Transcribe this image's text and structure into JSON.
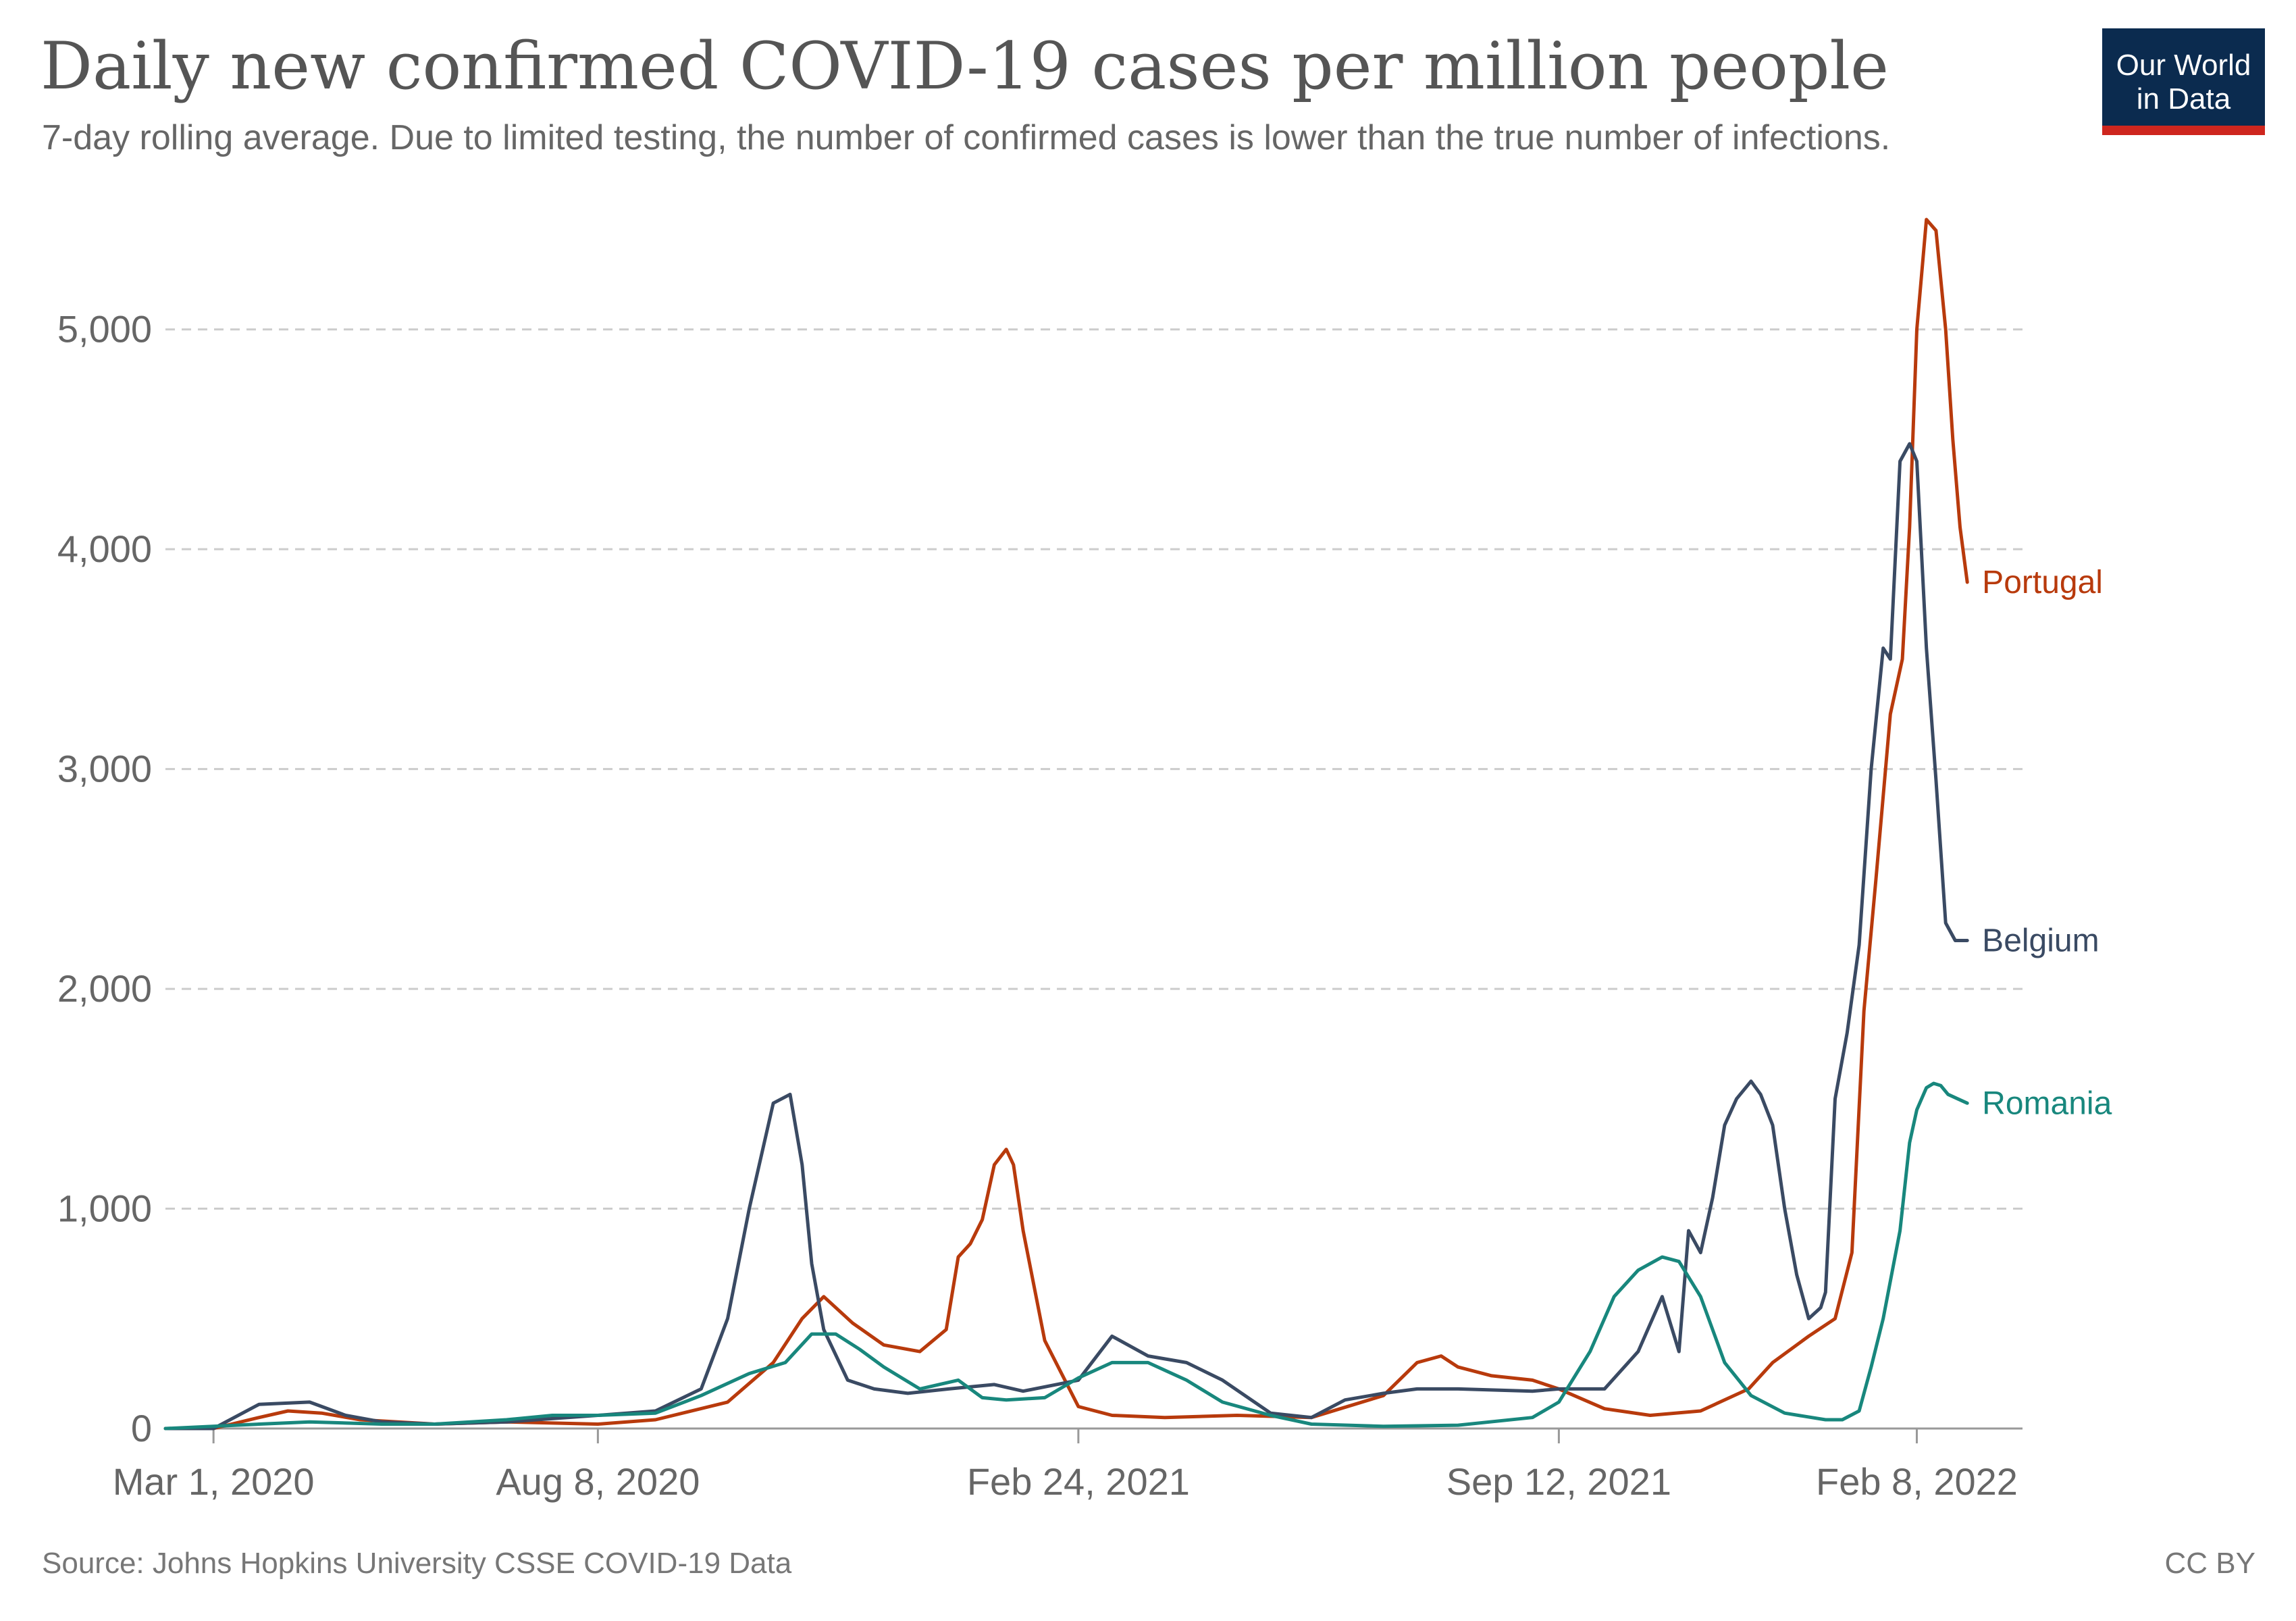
{
  "title": "Daily new confirmed COVID-19 cases per million people",
  "subtitle": "7-day rolling average. Due to limited testing, the number of confirmed cases is lower than the true number of infections.",
  "logo": {
    "line1": "Our World",
    "line2": "in Data"
  },
  "footer": {
    "source": "Source: Johns Hopkins University CSSE COVID-19 Data",
    "license": "CC BY"
  },
  "colors": {
    "Portugal": "#b83a0c",
    "Belgium": "#3a4a63",
    "Romania": "#18877d",
    "grid": "#cccccc",
    "axis": "#666666"
  },
  "chart_data": {
    "type": "line",
    "title": "Daily new confirmed COVID-19 cases per million people",
    "subtitle": "7-day rolling average. Due to limited testing, the number of confirmed cases is lower than the true number of infections.",
    "xlim": [
      "2020-02-10",
      "2022-03-24"
    ],
    "ylim": [
      0,
      5500
    ],
    "y_ticks": [
      0,
      1000,
      2000,
      3000,
      4000,
      5000
    ],
    "y_tick_labels": [
      "0",
      "1,000",
      "2,000",
      "3,000",
      "4,000",
      "5,000"
    ],
    "x_ticks": [
      "2020-03-01",
      "2020-08-08",
      "2021-02-24",
      "2021-09-12",
      "2022-02-08"
    ],
    "x_tick_labels": [
      "Mar 1, 2020",
      "Aug 8, 2020",
      "Feb 24, 2021",
      "Sep 12, 2021",
      "Feb 8, 2022"
    ],
    "grid": "horizontal dashed",
    "legend": "labels at line ends",
    "series": [
      {
        "name": "Portugal",
        "x": [
          "2020-02-10",
          "2020-03-01",
          "2020-03-20",
          "2020-04-01",
          "2020-04-15",
          "2020-05-01",
          "2020-06-01",
          "2020-07-01",
          "2020-08-08",
          "2020-09-01",
          "2020-10-01",
          "2020-10-20",
          "2020-11-01",
          "2020-11-10",
          "2020-11-22",
          "2020-12-05",
          "2020-12-20",
          "2020-12-31",
          "2021-01-05",
          "2021-01-10",
          "2021-01-15",
          "2021-01-20",
          "2021-01-25",
          "2021-01-28",
          "2021-02-01",
          "2021-02-10",
          "2021-02-24",
          "2021-03-10",
          "2021-04-01",
          "2021-05-01",
          "2021-06-01",
          "2021-07-01",
          "2021-07-15",
          "2021-07-25",
          "2021-08-01",
          "2021-08-15",
          "2021-09-01",
          "2021-09-12",
          "2021-10-01",
          "2021-10-20",
          "2021-11-10",
          "2021-11-30",
          "2021-12-10",
          "2021-12-25",
          "2022-01-05",
          "2022-01-12",
          "2022-01-17",
          "2022-01-22",
          "2022-01-28",
          "2022-02-02",
          "2022-02-05",
          "2022-02-08",
          "2022-02-12",
          "2022-02-16",
          "2022-02-20",
          "2022-02-23",
          "2022-02-26",
          "2022-03-01"
        ],
        "values": [
          0,
          0,
          50,
          80,
          70,
          40,
          20,
          30,
          20,
          40,
          120,
          300,
          500,
          600,
          480,
          380,
          350,
          450,
          780,
          840,
          950,
          1200,
          1270,
          1200,
          900,
          400,
          100,
          60,
          50,
          60,
          50,
          150,
          300,
          330,
          280,
          240,
          220,
          180,
          90,
          60,
          80,
          180,
          300,
          420,
          500,
          800,
          1900,
          2500,
          3250,
          3500,
          4100,
          5000,
          5500,
          5450,
          5000,
          4500,
          4100,
          3850
        ]
      },
      {
        "name": "Belgium",
        "x": [
          "2020-02-10",
          "2020-03-01",
          "2020-03-20",
          "2020-04-10",
          "2020-04-25",
          "2020-05-10",
          "2020-06-01",
          "2020-07-01",
          "2020-08-08",
          "2020-09-01",
          "2020-09-20",
          "2020-10-01",
          "2020-10-10",
          "2020-10-20",
          "2020-10-27",
          "2020-11-01",
          "2020-11-05",
          "2020-11-10",
          "2020-11-20",
          "2020-12-01",
          "2020-12-15",
          "2021-01-01",
          "2021-01-20",
          "2021-02-01",
          "2021-02-24",
          "2021-03-10",
          "2021-03-25",
          "2021-04-10",
          "2021-04-25",
          "2021-05-15",
          "2021-06-01",
          "2021-06-15",
          "2021-07-01",
          "2021-07-15",
          "2021-08-01",
          "2021-09-01",
          "2021-09-12",
          "2021-10-01",
          "2021-10-15",
          "2021-10-25",
          "2021-11-01",
          "2021-11-05",
          "2021-11-10",
          "2021-11-15",
          "2021-11-20",
          "2021-11-25",
          "2021-12-01",
          "2021-12-05",
          "2021-12-10",
          "2021-12-15",
          "2021-12-20",
          "2021-12-25",
          "2021-12-30",
          "2022-01-01",
          "2022-01-05",
          "2022-01-10",
          "2022-01-15",
          "2022-01-20",
          "2022-01-25",
          "2022-01-28",
          "2022-02-01",
          "2022-02-05",
          "2022-02-08",
          "2022-02-12",
          "2022-02-16",
          "2022-02-20",
          "2022-02-24",
          "2022-02-28",
          "2022-03-01"
        ],
        "values": [
          0,
          0,
          110,
          120,
          60,
          30,
          20,
          30,
          60,
          80,
          180,
          500,
          1000,
          1480,
          1520,
          1200,
          750,
          450,
          220,
          180,
          160,
          180,
          200,
          170,
          220,
          420,
          330,
          300,
          220,
          70,
          50,
          130,
          160,
          180,
          180,
          170,
          180,
          180,
          350,
          600,
          350,
          900,
          800,
          1050,
          1380,
          1500,
          1580,
          1520,
          1380,
          1000,
          700,
          500,
          550,
          620,
          1500,
          1800,
          2200,
          3000,
          3550,
          3500,
          4400,
          4480,
          4400,
          3550,
          2950,
          2300,
          2220,
          2220,
          2220
        ]
      },
      {
        "name": "Romania",
        "x": [
          "2020-02-10",
          "2020-03-20",
          "2020-04-10",
          "2020-05-10",
          "2020-06-01",
          "2020-07-01",
          "2020-07-20",
          "2020-08-08",
          "2020-09-01",
          "2020-09-20",
          "2020-10-10",
          "2020-10-25",
          "2020-11-05",
          "2020-11-15",
          "2020-11-25",
          "2020-12-05",
          "2020-12-20",
          "2021-01-05",
          "2021-01-15",
          "2021-01-25",
          "2021-02-10",
          "2021-02-24",
          "2021-03-10",
          "2021-03-25",
          "2021-04-10",
          "2021-04-25",
          "2021-05-15",
          "2021-06-01",
          "2021-07-01",
          "2021-08-01",
          "2021-09-01",
          "2021-09-12",
          "2021-09-25",
          "2021-10-05",
          "2021-10-15",
          "2021-10-25",
          "2021-11-01",
          "2021-11-10",
          "2021-11-20",
          "2021-12-01",
          "2021-12-15",
          "2022-01-01",
          "2022-01-08",
          "2022-01-15",
          "2022-01-20",
          "2022-01-25",
          "2022-02-01",
          "2022-02-05",
          "2022-02-08",
          "2022-02-12",
          "2022-02-15",
          "2022-02-18",
          "2022-02-21",
          "2022-02-25",
          "2022-03-01"
        ],
        "values": [
          0,
          20,
          30,
          20,
          20,
          40,
          60,
          60,
          70,
          150,
          250,
          300,
          430,
          430,
          360,
          280,
          180,
          220,
          140,
          130,
          140,
          230,
          300,
          300,
          220,
          120,
          60,
          20,
          10,
          15,
          50,
          120,
          350,
          600,
          720,
          780,
          760,
          600,
          300,
          150,
          70,
          40,
          40,
          80,
          280,
          500,
          900,
          1300,
          1450,
          1550,
          1570,
          1560,
          1520,
          1500,
          1480
        ]
      }
    ]
  }
}
